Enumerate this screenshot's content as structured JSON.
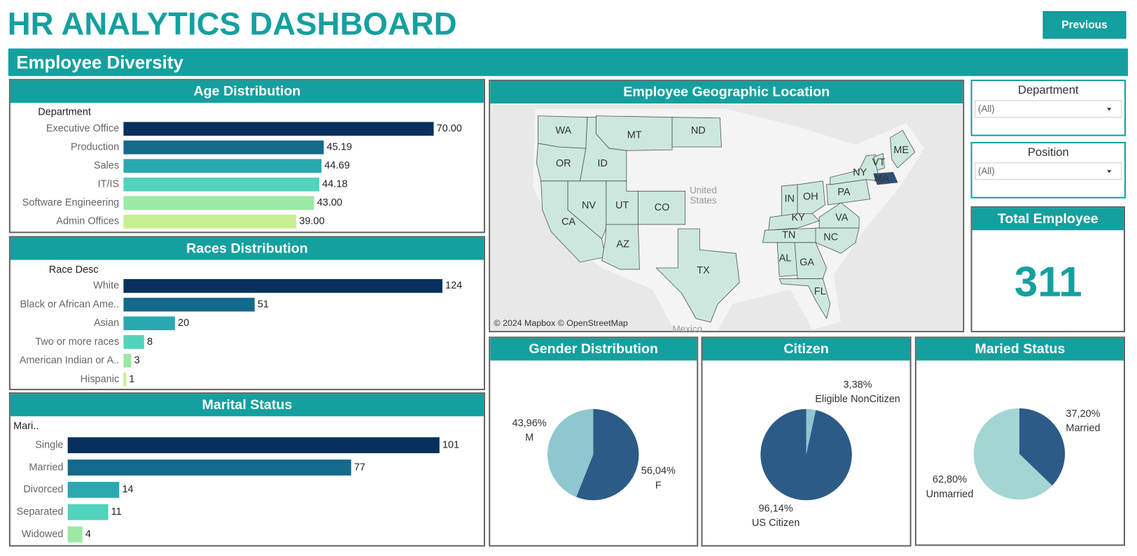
{
  "header": {
    "title": "HR ANALYTICS DASHBOARD",
    "button": "Previous",
    "section": "Employee Diversity"
  },
  "filters": [
    {
      "label": "Department",
      "value": "(All)"
    },
    {
      "label": "Position",
      "value": "(All)"
    }
  ],
  "kpi": {
    "title": "Total Employee",
    "value": 311
  },
  "map": {
    "title": "Employee Geographic Location",
    "states": [
      "WA",
      "MT",
      "ND",
      "OR",
      "ID",
      "NV",
      "UT",
      "CO",
      "CA",
      "AZ",
      "TX",
      "IN",
      "OH",
      "PA",
      "NY",
      "VT",
      "ME",
      "MA",
      "KY",
      "VA",
      "TN",
      "NC",
      "AL",
      "GA",
      "FL"
    ],
    "places": [
      "United States",
      "Mexico"
    ],
    "credit": "© 2024 Mapbox © OpenStreetMap"
  },
  "chart_data": [
    {
      "type": "bar",
      "title": "Age Distribution",
      "axis_label": "Department",
      "categories": [
        "Executive Office",
        "Production",
        "Sales",
        "IT/IS",
        "Software Engineering",
        "Admin Offices"
      ],
      "values": [
        70,
        45.19,
        44.69,
        44.18,
        43,
        39
      ],
      "value_labels": [
        "70.00",
        "45.19",
        "44.69",
        "44.18",
        "43.00",
        "39.00"
      ],
      "colors": [
        "#08305e",
        "#146a8a",
        "#2aa8b0",
        "#52d3bb",
        "#9ce8a6",
        "#c6f08e"
      ]
    },
    {
      "type": "bar",
      "title": "Races Distribution",
      "axis_label": "Race Desc",
      "categories": [
        "White",
        "Black or African Ame..",
        "Asian",
        "Two or more races",
        "American Indian or A..",
        "Hispanic"
      ],
      "values": [
        124,
        51,
        20,
        8,
        3,
        1
      ],
      "colors": [
        "#08305e",
        "#146a8a",
        "#2aa8b0",
        "#52d3bb",
        "#9ce8a6",
        "#c6f08e"
      ]
    },
    {
      "type": "bar",
      "title": "Marital Status",
      "axis_label": "Mari..",
      "categories": [
        "Single",
        "Married",
        "Divorced",
        "Separated",
        "Widowed"
      ],
      "values": [
        101,
        77,
        14,
        11,
        4
      ],
      "colors": [
        "#08305e",
        "#146a8a",
        "#2aa8b0",
        "#52d3bb",
        "#9ce8a6"
      ]
    },
    {
      "type": "pie",
      "title": "Gender Distribution",
      "categories": [
        "F",
        "M"
      ],
      "values": [
        56.04,
        43.96
      ],
      "value_labels": [
        "56,04%",
        "43,96%"
      ],
      "colors": [
        "#2d5b87",
        "#8ec7cf"
      ]
    },
    {
      "type": "pie",
      "title": "Citizen",
      "categories": [
        "Eligible NonCitizen",
        "US Citizen"
      ],
      "values": [
        3.38,
        96.14
      ],
      "value_labels": [
        "3,38%",
        "96,14%"
      ],
      "colors": [
        "#8ec7cf",
        "#2d5b87"
      ]
    },
    {
      "type": "pie",
      "title": "Maried Status",
      "categories": [
        "Married",
        "Unmarried"
      ],
      "values": [
        37.2,
        62.8
      ],
      "value_labels": [
        "37,20%",
        "62,80%"
      ],
      "colors": [
        "#2d5b87",
        "#a3d5d3"
      ]
    }
  ]
}
